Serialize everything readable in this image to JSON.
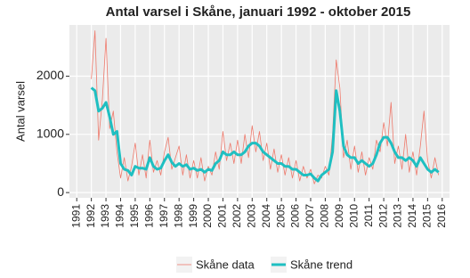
{
  "chart_data": {
    "type": "line",
    "title": "Antal varsel i Skåne, januari 1992 - oktober 2015",
    "y_label": "Antal varsel",
    "x": [
      1992,
      1992.25,
      1992.5,
      1992.75,
      1993,
      1993.25,
      1993.5,
      1993.75,
      1994,
      1994.25,
      1994.5,
      1994.75,
      1995,
      1995.25,
      1995.5,
      1995.75,
      1996,
      1996.25,
      1996.5,
      1996.75,
      1997,
      1997.25,
      1997.5,
      1997.75,
      1998,
      1998.25,
      1998.5,
      1998.75,
      1999,
      1999.25,
      1999.5,
      1999.75,
      2000,
      2000.25,
      2000.5,
      2000.75,
      2001,
      2001.25,
      2001.5,
      2001.75,
      2002,
      2002.25,
      2002.5,
      2002.75,
      2003,
      2003.25,
      2003.5,
      2003.75,
      2004,
      2004.25,
      2004.5,
      2004.75,
      2005,
      2005.25,
      2005.5,
      2005.75,
      2006,
      2006.25,
      2006.5,
      2006.75,
      2007,
      2007.25,
      2007.5,
      2007.75,
      2008,
      2008.25,
      2008.5,
      2008.75,
      2009,
      2009.25,
      2009.5,
      2009.75,
      2010,
      2010.25,
      2010.5,
      2010.75,
      2011,
      2011.25,
      2011.5,
      2011.75,
      2012,
      2012.25,
      2012.5,
      2012.75,
      2013,
      2013.25,
      2013.5,
      2013.75,
      2014,
      2014.25,
      2014.5,
      2014.75,
      2015,
      2015.25,
      2015.5,
      2015.75
    ],
    "series": [
      {
        "name": "Skåne data",
        "color": "#ee7a6c",
        "width": 0.8,
        "values": [
          1950,
          2780,
          900,
          1600,
          2650,
          1100,
          1400,
          700,
          250,
          600,
          200,
          450,
          850,
          300,
          650,
          250,
          900,
          350,
          550,
          300,
          700,
          950,
          400,
          600,
          800,
          300,
          650,
          250,
          550,
          250,
          600,
          200,
          450,
          300,
          700,
          400,
          1050,
          550,
          850,
          500,
          900,
          500,
          1000,
          600,
          1150,
          700,
          1050,
          550,
          850,
          400,
          750,
          350,
          650,
          300,
          600,
          250,
          550,
          200,
          450,
          250,
          400,
          150,
          300,
          250,
          450,
          300,
          1000,
          2280,
          1800,
          600,
          900,
          400,
          800,
          350,
          700,
          300,
          600,
          400,
          900,
          700,
          1200,
          800,
          1550,
          500,
          800,
          400,
          1000,
          350,
          700,
          300,
          800,
          1400,
          550,
          250,
          600,
          300
        ]
      },
      {
        "name": "Skåne trend",
        "color": "#1fbfc1",
        "width": 3,
        "values": [
          1800,
          1750,
          1400,
          1450,
          1550,
          1300,
          1000,
          1050,
          500,
          400,
          380,
          300,
          450,
          420,
          420,
          400,
          600,
          450,
          400,
          420,
          550,
          650,
          520,
          450,
          500,
          450,
          480,
          400,
          420,
          380,
          400,
          350,
          400,
          380,
          500,
          550,
          700,
          650,
          650,
          700,
          650,
          650,
          700,
          800,
          850,
          850,
          800,
          700,
          650,
          600,
          550,
          500,
          500,
          450,
          450,
          400,
          400,
          350,
          300,
          300,
          320,
          250,
          200,
          300,
          350,
          400,
          700,
          1750,
          1400,
          800,
          650,
          600,
          600,
          500,
          550,
          500,
          450,
          500,
          650,
          850,
          950,
          950,
          850,
          700,
          600,
          600,
          550,
          600,
          550,
          450,
          600,
          500,
          400,
          350,
          400,
          350
        ]
      }
    ],
    "xlim": [
      1990.5,
      2016.5
    ],
    "xticks": [
      1991,
      1992,
      1993,
      1994,
      1995,
      1996,
      1997,
      1998,
      1999,
      2000,
      2001,
      2002,
      2003,
      2004,
      2005,
      2006,
      2007,
      2008,
      2009,
      2010,
      2011,
      2012,
      2013,
      2014,
      2015,
      2016
    ],
    "ylim": [
      -90,
      2880
    ],
    "yticks": [
      0,
      1000,
      2000
    ],
    "grid": true,
    "legend": "bottom"
  }
}
